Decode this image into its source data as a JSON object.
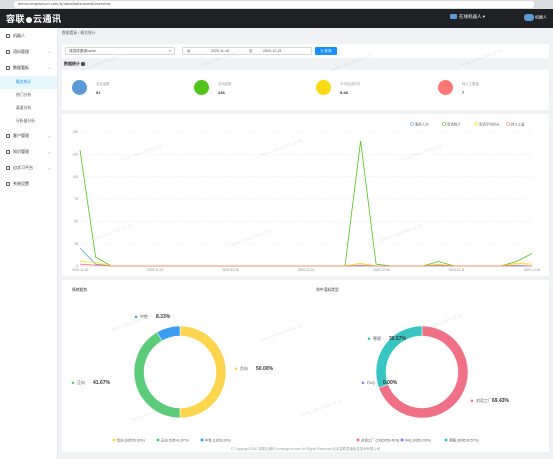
{
  "browser": {
    "url": "demo.ronglianyun.com/#/robot/data-board/overview"
  },
  "navbar": {
    "logo_text_a": "容联",
    "logo_text_b": "云通讯",
    "user_label": "在线机器人",
    "right_label": "机器人"
  },
  "sidebar": {
    "items": [
      {
        "label": "机器人",
        "has_arrow": false
      },
      {
        "label": "语料管理",
        "has_arrow": true
      },
      {
        "label": "数据看板",
        "has_arrow": true
      }
    ],
    "sub_items": [
      {
        "label": "概览统计",
        "active": true
      },
      {
        "label": "热门分析",
        "active": false
      },
      {
        "label": "渠道分析",
        "active": false
      },
      {
        "label": "分析量分析",
        "active": false
      }
    ],
    "items_after": [
      {
        "label": "客户管理",
        "has_arrow": true
      },
      {
        "label": "知识管理",
        "has_arrow": true
      },
      {
        "label": "自学习平台",
        "has_arrow": true
      },
      {
        "label": "系统设置",
        "has_arrow": false
      }
    ]
  },
  "breadcrumb": {
    "part1": "数据看板",
    "sep": "/",
    "part2": "概览统计"
  },
  "filter": {
    "select_value": "请选择渠道name",
    "date_start": "2020-11-16",
    "date_sep": "至",
    "date_end": "2020-12-15",
    "query_label": "Q 查询"
  },
  "stats": {
    "title": "数据统计",
    "cards": [
      {
        "label": "总会话数",
        "value": "91",
        "color": "#5b9bd5"
      },
      {
        "label": "总消息数",
        "value": "246",
        "color": "#52c41a"
      },
      {
        "label": "平均会话时长",
        "value": "5.48",
        "color": "#fadb14"
      },
      {
        "label": "转人工数量",
        "value": "7",
        "color": "#ff7875"
      }
    ]
  },
  "line_legend": [
    "服务人次",
    "会话统计",
    "会话平均时长",
    "转人工量"
  ],
  "chart_data": [
    {
      "type": "line",
      "x_ticks": [
        "2020-11-16",
        "2020-11-21",
        "2020-11-26",
        "2020-12-01",
        "2020-12-06",
        "2020-12-11",
        "2020-12-16"
      ],
      "ylim": [
        0,
        150
      ],
      "yticks": [
        "0",
        "25",
        "50",
        "75",
        "100",
        "125",
        "150"
      ],
      "series": [
        {
          "name": "服务人次",
          "color": "#5b9bd5",
          "values": [
            20,
            2,
            0,
            0,
            0,
            0,
            0,
            0,
            0,
            0,
            0,
            0,
            0,
            0,
            0,
            0,
            0,
            0,
            0,
            0,
            0,
            0,
            0,
            0,
            0,
            0,
            0,
            0,
            0,
            0
          ]
        },
        {
          "name": "会话统计",
          "color": "#52c41a",
          "values": [
            130,
            10,
            0,
            0,
            0,
            0,
            0,
            0,
            0,
            0,
            0,
            0,
            0,
            0,
            0,
            0,
            0,
            0,
            140,
            2,
            0,
            0,
            0,
            5,
            0,
            0,
            0,
            0,
            5,
            14
          ]
        },
        {
          "name": "会话平均时长",
          "color": "#fadb14",
          "values": [
            5,
            4,
            0,
            0,
            0,
            0,
            0,
            0,
            0,
            0,
            0,
            0,
            0,
            0,
            0,
            0,
            0,
            0,
            3,
            0,
            0,
            0,
            0,
            2,
            0,
            0,
            0,
            0,
            3,
            2
          ]
        },
        {
          "name": "转人工量",
          "color": "#ff7875",
          "values": [
            2,
            1,
            0,
            0,
            0,
            0,
            0,
            0,
            0,
            0,
            0,
            0,
            0,
            0,
            0,
            0,
            0,
            0,
            1,
            0,
            0,
            0,
            0,
            1,
            0,
            0,
            0,
            0,
            1,
            0
          ]
        }
      ]
    },
    {
      "type": "pie",
      "title": "情绪趋势",
      "series": [
        {
          "name": "负向",
          "value": 50.0,
          "count": "6次",
          "pct_label": "50.00%",
          "color": "#ffd54f"
        },
        {
          "name": "正向",
          "value": 41.67,
          "count": "5次",
          "pct_label": "41.67%",
          "color": "#5dcc7a"
        },
        {
          "name": "中性",
          "value": 8.33,
          "count": "1次",
          "pct_label": "8.33%",
          "color": "#3d9bf2"
        }
      ],
      "labels": {
        "neg": "负向 50.00%",
        "pos": "正向 41.67%",
        "neu": "中性 8.33%"
      },
      "legend": [
        "负向  (6次/50.00%)",
        "正向  (5次/41.67%)",
        "中性  (1次/8.33%)"
      ]
    },
    {
      "type": "pie",
      "title": "命中语料类型",
      "series": [
        {
          "name": "对话工厂",
          "value": 69.43,
          "count": "218次",
          "pct_label": "69.43%",
          "color": "#f07085"
        },
        {
          "name": "FAQ",
          "value": 0.0,
          "count": "0次",
          "pct_label": "0.00%",
          "color": "#7b83eb"
        },
        {
          "name": "寒暄",
          "value": 30.57,
          "count": "96次",
          "pct_label": "30.57%",
          "color": "#39c6c3"
        }
      ],
      "labels": {
        "a": "对话工厂 69.43%",
        "b": "FAQ 0.00%",
        "c": "寒暄 30.57%"
      },
      "legend": [
        "对话工厂  (218次/69.43%)",
        "FAQ  (0次/0.00%)",
        "寒暄  (96次/30.57%)"
      ]
    }
  ],
  "footer": {
    "text": "© Copyright 2020   容联云通讯   yuntongxun.com   All Rights Reserved 北京容联易通信息技术有限公司"
  },
  "watermark": "demo_robot 2020-12-15"
}
